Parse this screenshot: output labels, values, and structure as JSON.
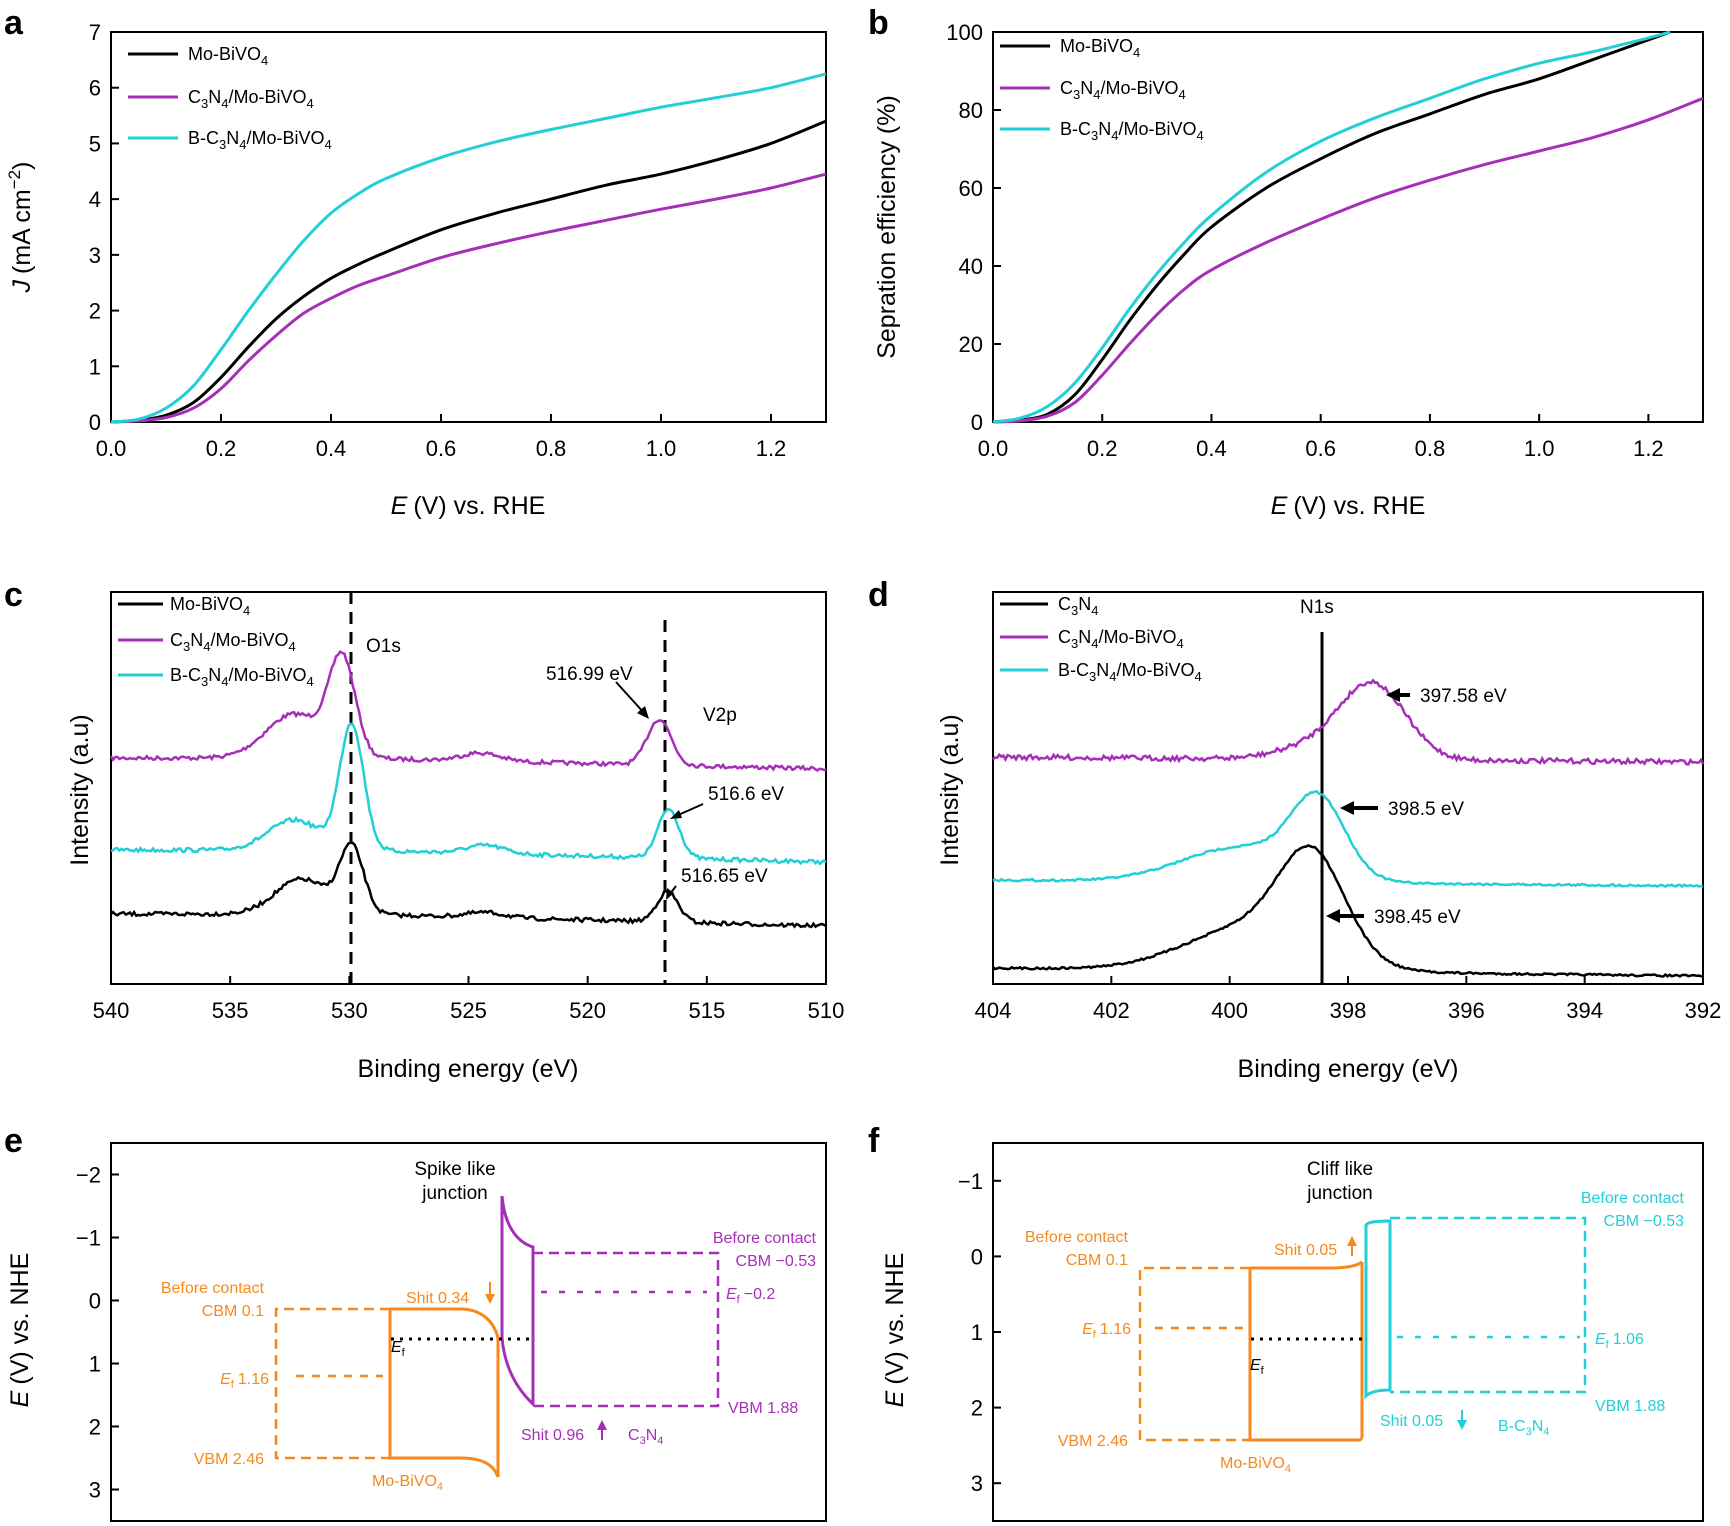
{
  "colors": {
    "mo": "#000000",
    "c3n4": "#a62fb8",
    "bc3n4": "#22cfd6",
    "orange": "#f7881c"
  },
  "chart_data": [
    {
      "panel": "a",
      "type": "line",
      "xlabel_italic": "E",
      "xlabel": "(V) vs. RHE",
      "ylabel_italic": "J",
      "ylabel_pre": "(mA cm",
      "ylabel_sup": "−2",
      "ylabel_post": ")",
      "xlim": [
        0,
        1.3
      ],
      "ylim": [
        0,
        7
      ],
      "xticks": [
        0.0,
        0.2,
        0.4,
        0.6,
        0.8,
        1.0,
        1.2
      ],
      "yticks": [
        0,
        1,
        2,
        3,
        4,
        5,
        6,
        7
      ],
      "series": [
        {
          "name": "Mo-BiVO4",
          "color": "#000000",
          "x": [
            0,
            0.05,
            0.1,
            0.15,
            0.2,
            0.25,
            0.3,
            0.35,
            0.4,
            0.45,
            0.5,
            0.6,
            0.7,
            0.8,
            0.9,
            1.0,
            1.1,
            1.2,
            1.3
          ],
          "y": [
            0,
            0.03,
            0.12,
            0.35,
            0.8,
            1.35,
            1.85,
            2.25,
            2.58,
            2.83,
            3.05,
            3.45,
            3.75,
            4.0,
            4.25,
            4.45,
            4.7,
            5.0,
            5.4
          ]
        },
        {
          "name": "C3N4/Mo-BiVO4",
          "color": "#a62fb8",
          "x": [
            0,
            0.05,
            0.1,
            0.15,
            0.2,
            0.25,
            0.3,
            0.35,
            0.4,
            0.45,
            0.5,
            0.6,
            0.7,
            0.8,
            0.9,
            1.0,
            1.1,
            1.2,
            1.3
          ],
          "y": [
            0,
            0.02,
            0.08,
            0.25,
            0.6,
            1.1,
            1.55,
            1.95,
            2.22,
            2.45,
            2.62,
            2.95,
            3.2,
            3.42,
            3.62,
            3.82,
            4.0,
            4.2,
            4.45
          ]
        },
        {
          "name": "B-C3N4/Mo-BiVO4",
          "color": "#22cfd6",
          "x": [
            0,
            0.05,
            0.1,
            0.15,
            0.2,
            0.25,
            0.3,
            0.35,
            0.4,
            0.45,
            0.5,
            0.6,
            0.7,
            0.8,
            0.9,
            1.0,
            1.1,
            1.2,
            1.3
          ],
          "y": [
            0,
            0.05,
            0.25,
            0.65,
            1.3,
            2.0,
            2.65,
            3.25,
            3.75,
            4.1,
            4.37,
            4.75,
            5.03,
            5.25,
            5.45,
            5.65,
            5.82,
            6.0,
            6.25
          ]
        }
      ],
      "legend": [
        {
          "pre": "Mo-BiVO",
          "sub": "4",
          "post": ""
        },
        {
          "pre": "C",
          "sub": "3",
          "mid": "N",
          "sub2": "4",
          "post": "/Mo-BiVO",
          "sub3": "4"
        },
        {
          "pre": "B-C",
          "sub": "3",
          "mid": "N",
          "sub2": "4",
          "post": "/Mo-BiVO",
          "sub3": "4"
        }
      ]
    },
    {
      "panel": "b",
      "type": "line",
      "xlabel_italic": "E",
      "xlabel": "(V) vs. RHE",
      "ylabel": "Sepration efficiency (%)",
      "xlim": [
        0,
        1.3
      ],
      "ylim": [
        0,
        100
      ],
      "xticks": [
        0.0,
        0.2,
        0.4,
        0.6,
        0.8,
        1.0,
        1.2
      ],
      "yticks": [
        0,
        20,
        40,
        60,
        80,
        100
      ],
      "series": [
        {
          "name": "Mo-BiVO4",
          "color": "#000000",
          "x": [
            0,
            0.05,
            0.1,
            0.15,
            0.2,
            0.25,
            0.3,
            0.35,
            0.4,
            0.5,
            0.6,
            0.7,
            0.8,
            0.9,
            1.0,
            1.1,
            1.2,
            1.24
          ],
          "y": [
            0,
            0.5,
            2,
            7,
            16,
            26,
            35,
            43,
            50,
            60,
            67.5,
            74,
            79,
            84,
            88,
            93,
            98,
            100
          ]
        },
        {
          "name": "C3N4/Mo-BiVO4",
          "color": "#a62fb8",
          "x": [
            0,
            0.05,
            0.1,
            0.15,
            0.2,
            0.25,
            0.3,
            0.35,
            0.4,
            0.5,
            0.6,
            0.7,
            0.8,
            0.9,
            1.0,
            1.1,
            1.2,
            1.3
          ],
          "y": [
            0,
            0.3,
            1.5,
            5,
            12,
            20,
            27.5,
            34,
            39,
            46,
            52,
            57.5,
            62,
            66,
            69.5,
            73,
            77.5,
            83
          ]
        },
        {
          "name": "B-C3N4/Mo-BiVO4",
          "color": "#22cfd6",
          "x": [
            0,
            0.05,
            0.1,
            0.15,
            0.2,
            0.25,
            0.3,
            0.35,
            0.4,
            0.5,
            0.6,
            0.7,
            0.8,
            0.9,
            1.0,
            1.1,
            1.2,
            1.24
          ],
          "y": [
            0,
            1,
            4,
            10,
            19,
            29,
            38,
            46,
            53,
            64,
            72,
            78,
            83,
            88,
            92,
            95,
            98.5,
            100
          ]
        }
      ]
    },
    {
      "panel": "c",
      "type": "line",
      "xlabel": "Binding energy (eV)",
      "ylabel": "Intensity (a.u)",
      "xlim": [
        540,
        510
      ],
      "xticks": [
        540,
        535,
        530,
        525,
        520,
        515,
        510
      ],
      "vlines": [
        530.0,
        516.8
      ],
      "labels": {
        "o1s": "O1s",
        "v2p": "V2p",
        "a1": "516.99 eV",
        "a2": "516.6 eV",
        "a3": "516.65 eV"
      }
    },
    {
      "panel": "d",
      "type": "line",
      "xlabel": "Binding energy (eV)",
      "ylabel": "Intensity (a.u)",
      "xlim": [
        404,
        392
      ],
      "xticks": [
        404,
        402,
        400,
        398,
        396,
        394,
        392
      ],
      "vline": 398.45,
      "labels": {
        "n1s": "N1s",
        "a1": "397.58 eV",
        "a2": "398.5 eV",
        "a3": "398.45 eV"
      },
      "legend_c3n4": {
        "pre": "C",
        "sub": "3",
        "mid": "N",
        "sub2": "4"
      }
    },
    {
      "panel": "e",
      "type": "diagram",
      "ylabel_italic": "E",
      "ylabel": "(V) vs. NHE",
      "ylim": [
        -2.5,
        3.5
      ],
      "yticks": [
        -2,
        -1,
        0,
        1,
        2,
        3
      ],
      "yticklabels": [
        "−2",
        "−1",
        "0",
        "1",
        "2",
        "3"
      ],
      "labels": {
        "title1": "Spike like",
        "title2": "junction",
        "bc": "Before contact",
        "cbm1": "CBM 0.1",
        "ef1": "1.16",
        "vbm1": "VBM 2.46",
        "shit1": "Shit 0.34",
        "ef": "f",
        "before2": "Before contact",
        "cbm2": "CBM −0.53",
        "ef2": "−0.2",
        "vbm2": "VBM 1.88",
        "shit2": "Shit 0.96",
        "mat1": "Mo-BiVO",
        "mat2": "C",
        "E": "E"
      }
    },
    {
      "panel": "f",
      "type": "diagram",
      "ylabel_italic": "E",
      "ylabel": "(V) vs. NHE",
      "ylim": [
        -1.5,
        3.5
      ],
      "yticks": [
        -1,
        0,
        1,
        2,
        3
      ],
      "yticklabels": [
        "−1",
        "0",
        "1",
        "2",
        "3"
      ],
      "labels": {
        "title1": "Cliff like",
        "title2": "junction",
        "bc": "Before contact",
        "cbm1": "CBM 0.1",
        "ef1": "1.16",
        "vbm1": "VBM 2.46",
        "shit1": "Shit 0.05",
        "shit2": "Shit 0.05",
        "before2": "Before contact",
        "cbm2": "CBM −0.53",
        "ef2": "1.06",
        "vbm2": "VBM 1.88",
        "mat1": "Mo-BiVO",
        "mat2": "B-C",
        "E": "E",
        "ef": "f"
      }
    }
  ],
  "panel_letters": [
    "a",
    "b",
    "c",
    "d",
    "e",
    "f"
  ]
}
